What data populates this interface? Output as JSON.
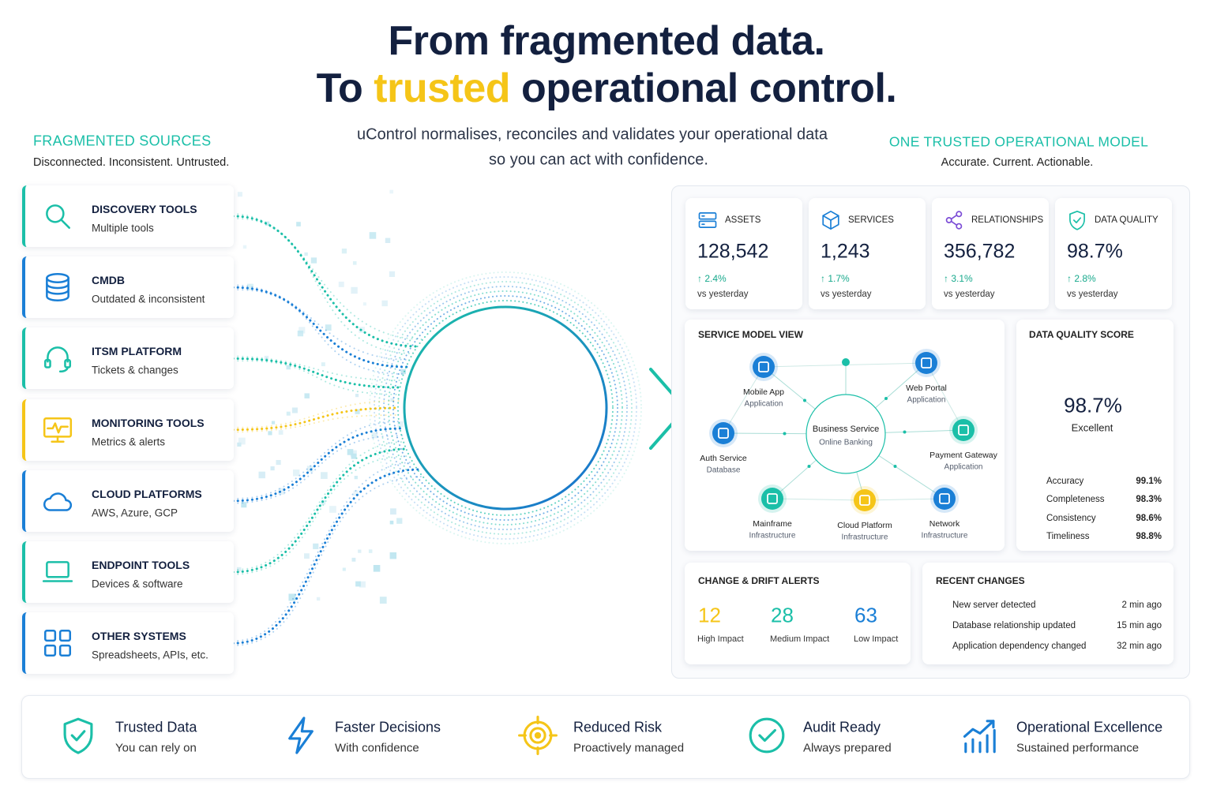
{
  "header": {
    "title_line1": "From fragmented data.",
    "title_line2_start": "To",
    "title_line2_highlight": "trusted",
    "title_line2_end": "operational control.",
    "subtitle_line1": "uControl normalises, reconciles and validates your operational data",
    "subtitle_line2": "so you can act with confidence."
  },
  "sources_panel": {
    "heading": "FRAGMENTED SOURCES",
    "tagline": "Disconnected. Inconsistent. Untrusted.",
    "sources": [
      {
        "title": "DISCOVERY TOOLS",
        "subtitle": "Multiple tools"
      },
      {
        "title": "CMDB",
        "subtitle": "Outdated & inconsistent"
      },
      {
        "title": "ITSM PLATFORM",
        "subtitle": "Tickets & changes"
      },
      {
        "title": "MONITORING TOOLS",
        "subtitle": "Metrics & alerts"
      },
      {
        "title": "CLOUD PLATFORMS",
        "subtitle": "AWS, Azure, GCP"
      },
      {
        "title": "ENDPOINT TOOLS",
        "subtitle": "Devices & software"
      },
      {
        "title": "OTHER SYSTEMS",
        "subtitle": "Spreadsheets, APIs, etc."
      }
    ]
  },
  "model_panel": {
    "heading": "ONE TRUSTED OPERATIONAL MODEL",
    "tagline": "Accurate. Current. Actionable.",
    "kpis": [
      {
        "label": "ASSETS",
        "value": "128,542",
        "change": "↑ 2.4%",
        "note": "vs yesterday"
      },
      {
        "label": "SERVICES",
        "value": "1,243",
        "change": "↑ 1.7%",
        "note": "vs yesterday"
      },
      {
        "label": "RELATIONSHIPS",
        "value": "356,782",
        "change": "↑ 3.1%",
        "note": "vs yesterday"
      },
      {
        "label": "DATA QUALITY",
        "value": "98.7%",
        "change": "↑ 2.8%",
        "note": "vs yesterday"
      }
    ],
    "service_model": {
      "title": "SERVICE MODEL VIEW",
      "center": {
        "label": "Business Service",
        "sublabel": "Online Banking"
      },
      "nodes": [
        {
          "label": "Mobile App",
          "sublabel": "Application"
        },
        {
          "label": "Web Portal",
          "sublabel": "Application"
        },
        {
          "label": "Auth Service",
          "sublabel": "Database"
        },
        {
          "label": "Payment Gateway",
          "sublabel": "Application"
        },
        {
          "label": "Mainframe",
          "sublabel": "Infrastructure"
        },
        {
          "label": "Cloud Platform",
          "sublabel": "Infrastructure"
        },
        {
          "label": "Network",
          "sublabel": "Infrastructure"
        }
      ]
    },
    "data_quality": {
      "title": "DATA QUALITY SCORE",
      "score": "98.7%",
      "rating": "Excellent",
      "metrics": [
        {
          "name": "Accuracy",
          "value": "99.1%"
        },
        {
          "name": "Completeness",
          "value": "98.3%"
        },
        {
          "name": "Consistency",
          "value": "98.6%"
        },
        {
          "name": "Timeliness",
          "value": "98.8%"
        }
      ]
    },
    "alerts": {
      "title": "CHANGE & DRIFT ALERTS",
      "items": [
        {
          "value": 12,
          "label": "High Impact"
        },
        {
          "value": 28,
          "label": "Medium Impact"
        },
        {
          "value": 63,
          "label": "Low Impact"
        }
      ]
    },
    "recent_changes": {
      "title": "RECENT CHANGES",
      "items": [
        {
          "text": "New server detected",
          "time": "2 min ago"
        },
        {
          "text": "Database relationship updated",
          "time": "15 min ago"
        },
        {
          "text": "Application dependency changed",
          "time": "32 min ago"
        }
      ]
    }
  },
  "benefits": [
    {
      "title": "Trusted Data",
      "subtitle": "You can rely on"
    },
    {
      "title": "Faster Decisions",
      "subtitle": "With confidence"
    },
    {
      "title": "Reduced Risk",
      "subtitle": "Proactively managed"
    },
    {
      "title": "Audit Ready",
      "subtitle": "Always prepared"
    },
    {
      "title": "Operational Excellence",
      "subtitle": "Sustained performance"
    }
  ]
}
